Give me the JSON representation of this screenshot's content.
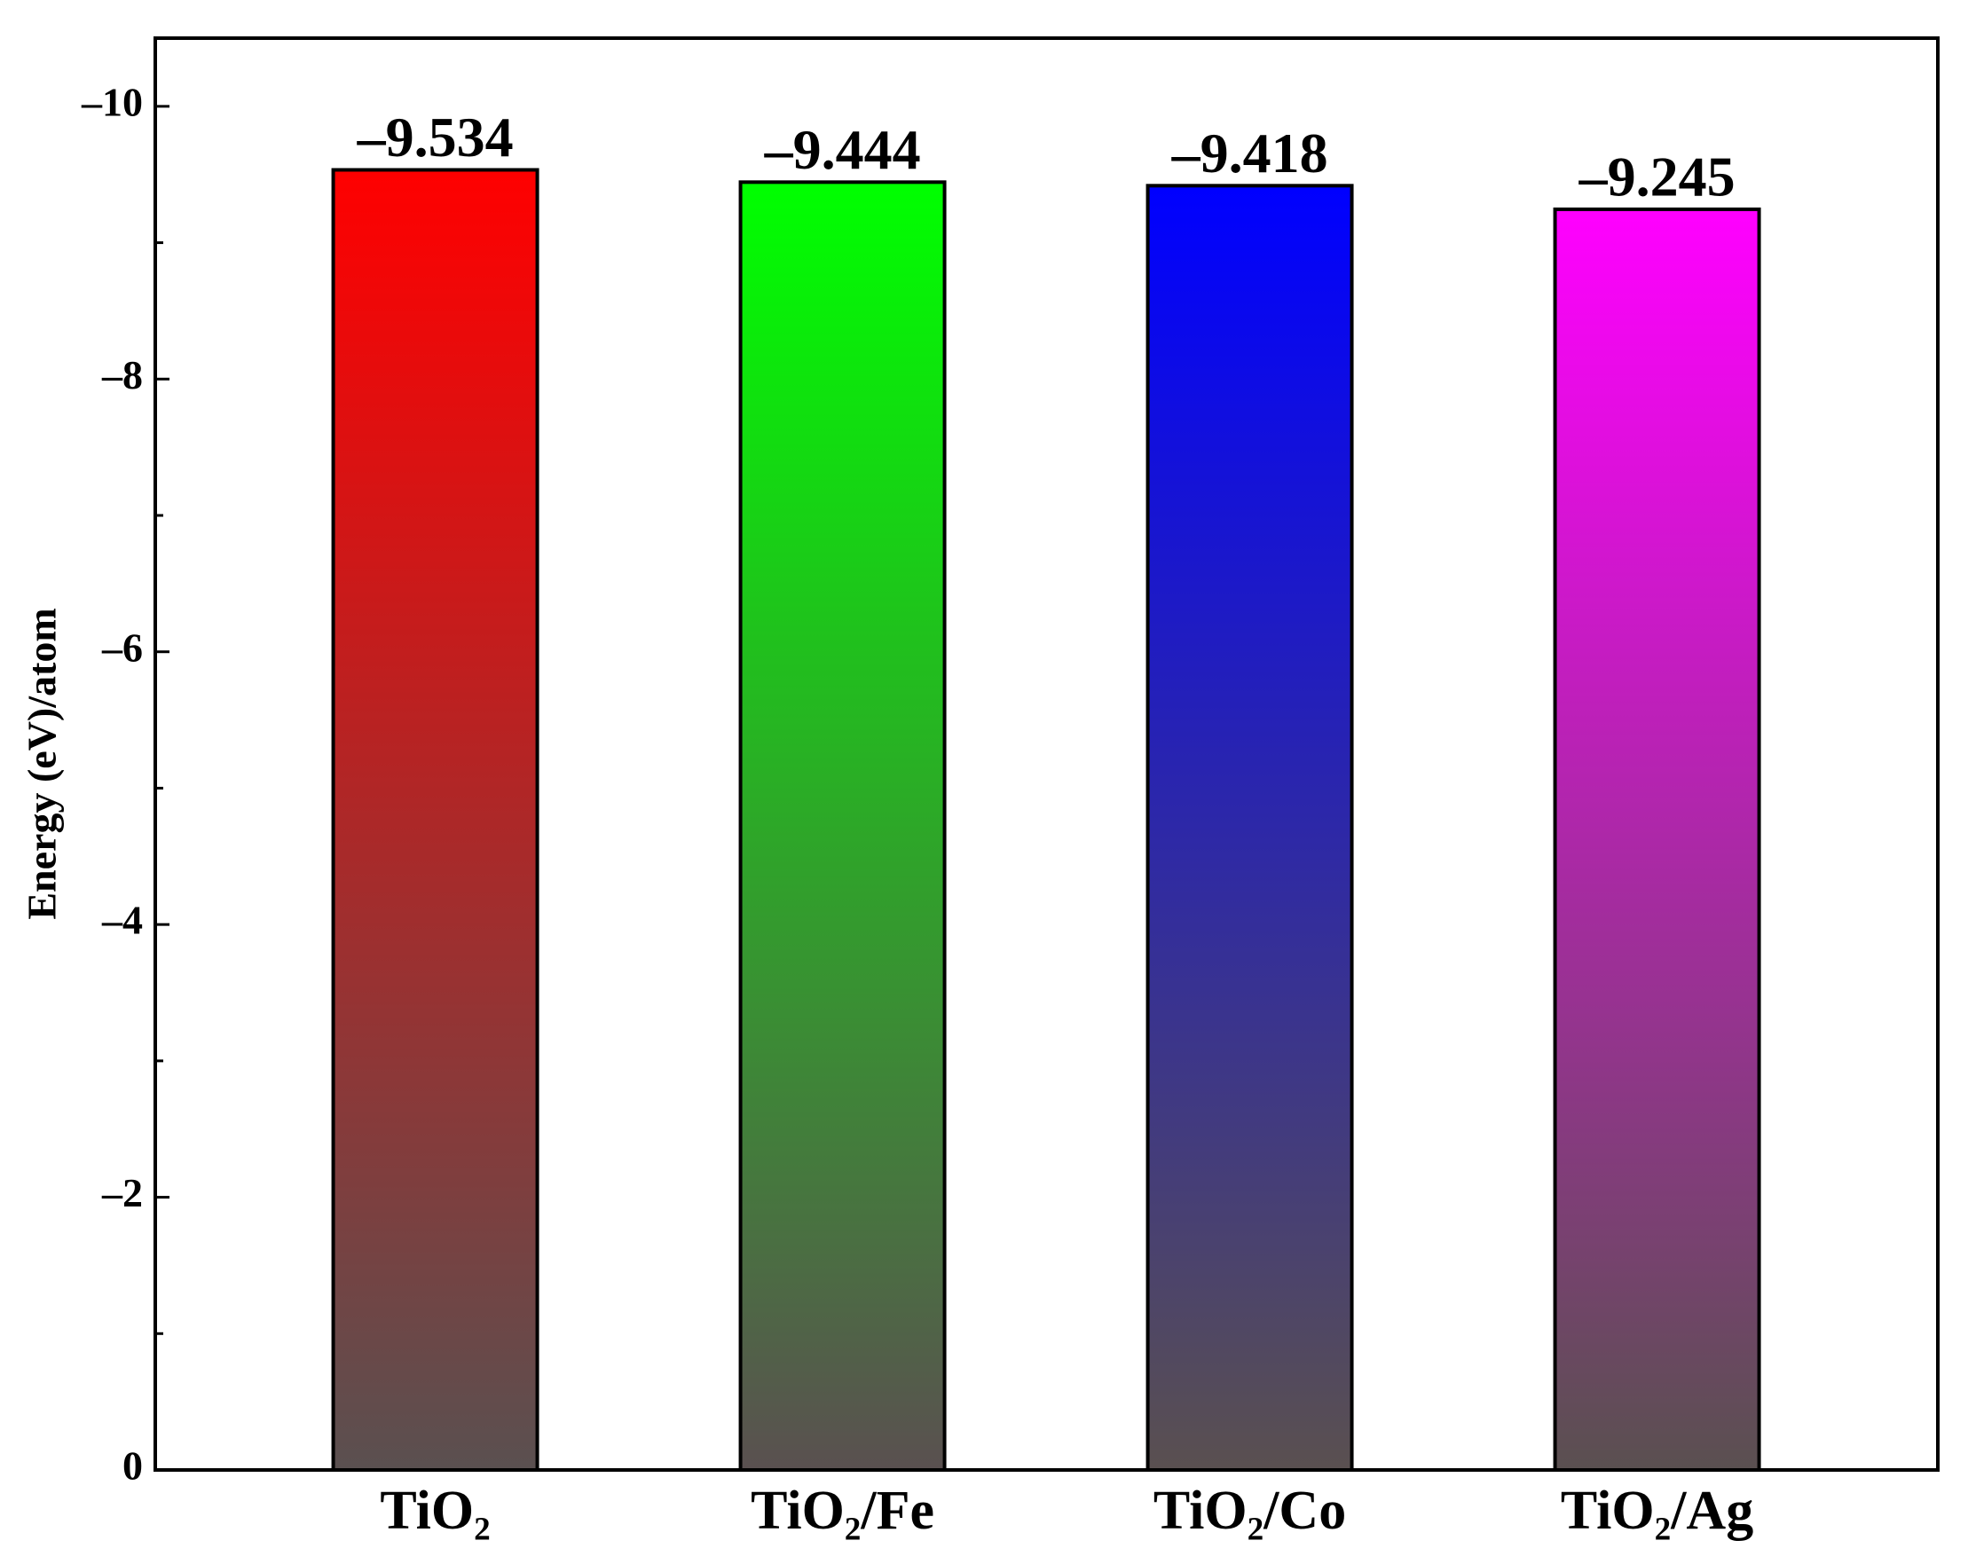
{
  "chart_data": {
    "type": "bar",
    "y_label": "Energy (eV)/atom",
    "categories": [
      "TiO₂",
      "TiO₂/Fe",
      "TiO₂/Co",
      "TiO₂/Ag"
    ],
    "values": [
      -9.534,
      -9.444,
      -9.418,
      -9.245
    ],
    "value_labels": [
      "–9.534",
      "–9.444",
      "–9.418",
      "–9.245"
    ],
    "colors": [
      "#ff0000",
      "#00ff00",
      "#0000ff",
      "#ff00ff"
    ],
    "gradient_bottom_color": "#5a5050",
    "ylim": [
      0,
      -10.5
    ],
    "yticks": [
      0,
      {
        "value": -2,
        "label": "–2"
      },
      {
        "value": -4,
        "label": "–4"
      },
      {
        "value": -6,
        "label": "–6"
      },
      {
        "value": -8,
        "label": "–8"
      },
      {
        "value": -10,
        "label": "–10"
      }
    ],
    "yminorticks": [
      -1,
      -3,
      -5,
      -7,
      -9
    ]
  }
}
